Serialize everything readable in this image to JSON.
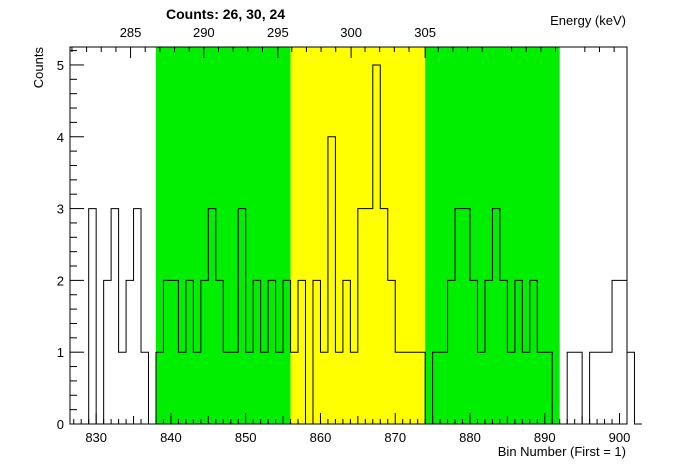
{
  "chart_data": {
    "type": "bar",
    "histogram_style": "step",
    "title": "Counts:   26,   30,   24",
    "xlabel": "Bin Number (First = 1)",
    "ylabel": "Counts",
    "x2label": "Energy (keV)",
    "xlim": [
      826.5,
      901
    ],
    "ylim": [
      0,
      5.25
    ],
    "x_ticks": [
      830,
      840,
      850,
      860,
      870,
      880,
      890,
      900
    ],
    "y_ticks": [
      0,
      1,
      2,
      3,
      4,
      5
    ],
    "energy_ticks": [
      {
        "label": "285",
        "bin": 834.6
      },
      {
        "label": "290",
        "bin": 844.4
      },
      {
        "label": "295",
        "bin": 854.3
      },
      {
        "label": "300",
        "bin": 864.1
      },
      {
        "label": "305",
        "bin": 874.0
      }
    ],
    "regions": [
      {
        "name": "left background",
        "x0": 838,
        "x1": 856,
        "color": "#00ee00"
      },
      {
        "name": "peak",
        "x0": 856,
        "x1": 874,
        "color": "#ffff00"
      },
      {
        "name": "right background",
        "x0": 874,
        "x1": 892,
        "color": "#00ee00"
      }
    ],
    "bin_start": 829,
    "bin_width": 1,
    "values": [
      3,
      0,
      2,
      3,
      1,
      2,
      3,
      1,
      0,
      1,
      2,
      2,
      1,
      2,
      1,
      2,
      3,
      2,
      1,
      1,
      3,
      1,
      2,
      1,
      2,
      1,
      2,
      1,
      2,
      0,
      2,
      1,
      4,
      1,
      2,
      1,
      3,
      3,
      5,
      3,
      2,
      1,
      1,
      1,
      1,
      0,
      1,
      1,
      2,
      3,
      3,
      2,
      1,
      2,
      3,
      2,
      1,
      2,
      1,
      2,
      1,
      1,
      0,
      0,
      1,
      1,
      0,
      1,
      1,
      1,
      2,
      2,
      1,
      0
    ]
  }
}
